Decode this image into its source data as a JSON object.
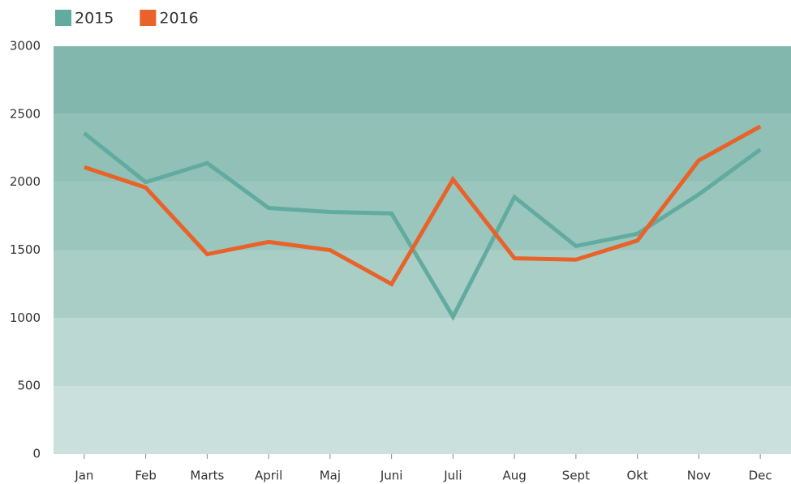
{
  "chart_data": {
    "type": "line",
    "categories": [
      "Jan",
      "Feb",
      "Marts",
      "April",
      "Maj",
      "Juni",
      "Juli",
      "Aug",
      "Sept",
      "Okt",
      "Nov",
      "Dec"
    ],
    "series": [
      {
        "name": "2015",
        "color": "#62aba0",
        "values": [
          2360,
          2000,
          2140,
          1810,
          1780,
          1770,
          1010,
          1890,
          1530,
          1620,
          1910,
          2240
        ]
      },
      {
        "name": "2016",
        "color": "#e8622a",
        "values": [
          2110,
          1960,
          1470,
          1560,
          1500,
          1250,
          2020,
          1440,
          1430,
          1570,
          2160,
          2410
        ]
      }
    ],
    "ylim": [
      0,
      3000
    ],
    "yticks": [
      0,
      500,
      1000,
      1500,
      2000,
      2500,
      3000
    ],
    "band_colors": [
      "#c9e0dc",
      "#bbd8d3",
      "#a9cec6",
      "#9bc6bd",
      "#90c0b6",
      "#82b7ad"
    ],
    "legend": "top-left"
  }
}
